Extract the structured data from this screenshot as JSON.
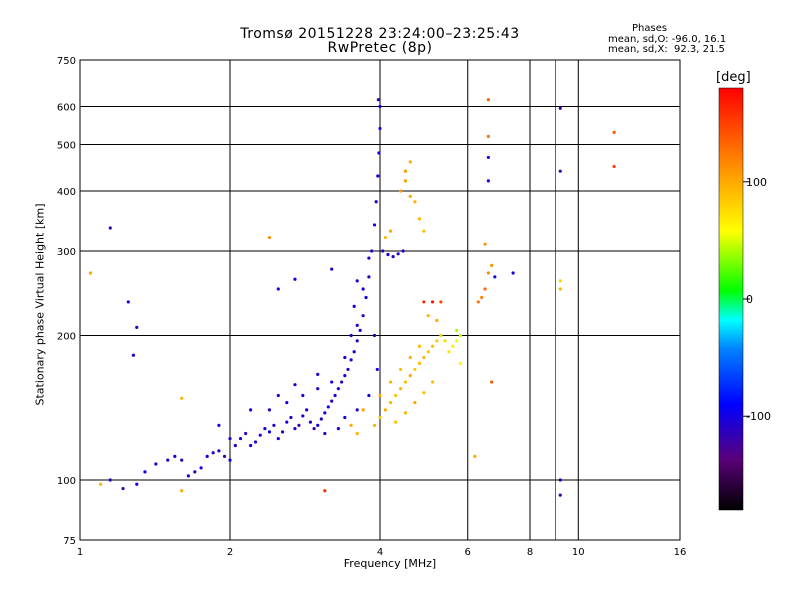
{
  "chart_data": {
    "type": "scatter",
    "title": "Tromsø 20151228 23:24:00–23:25:43",
    "subtitle": "RwPretec (8p)",
    "stats": {
      "heading": "Phases",
      "o_line": "mean, sd,O: -96.0, 16.1",
      "x_line": "mean, sd,X:  92.3, 21.5"
    },
    "xlabel": "Frequency [MHz]",
    "ylabel": "Stationary phase Virtual Height [km]",
    "xscale": "log",
    "yscale": "log",
    "xlim": [
      1,
      16
    ],
    "ylim": [
      75,
      750
    ],
    "xticks": [
      1,
      2,
      4,
      6,
      8,
      10,
      16
    ],
    "xtick_labels": [
      "1",
      "2",
      "4",
      "6",
      "8",
      "10",
      "16"
    ],
    "xgrid": [
      1,
      2,
      4,
      6,
      8,
      10,
      16
    ],
    "xgrid_minor": [
      9
    ],
    "yticks": [
      75,
      100,
      200,
      300,
      400,
      500,
      600,
      750
    ],
    "ytick_labels": [
      "75",
      "100",
      "200",
      "300",
      "400",
      "500",
      "600",
      "750"
    ],
    "grid": true,
    "colorbar": {
      "label": "[deg]",
      "range": [
        -180,
        180
      ],
      "ticks": [
        100,
        0,
        -100
      ],
      "tick_labels": [
        "100",
        "0",
        "-100"
      ]
    },
    "series": [
      {
        "mode": "O",
        "phase_mean": -96,
        "points": [
          [
            1.15,
            100,
            -110
          ],
          [
            1.22,
            96,
            -120
          ],
          [
            1.3,
            98,
            -100
          ],
          [
            1.35,
            104,
            -95
          ],
          [
            1.42,
            108,
            -105
          ],
          [
            1.5,
            110,
            -110
          ],
          [
            1.55,
            112,
            -100
          ],
          [
            1.6,
            110,
            -115
          ],
          [
            1.65,
            102,
            -105
          ],
          [
            1.7,
            104,
            -110
          ],
          [
            1.75,
            106,
            -100
          ],
          [
            1.8,
            112,
            -95
          ],
          [
            1.85,
            114,
            -110
          ],
          [
            1.9,
            115,
            -105
          ],
          [
            1.95,
            112,
            -120
          ],
          [
            2.0,
            110,
            -100
          ],
          [
            2.05,
            118,
            -110
          ],
          [
            2.1,
            122,
            -105
          ],
          [
            2.15,
            125,
            -115
          ],
          [
            2.2,
            118,
            -100
          ],
          [
            2.25,
            120,
            -105
          ],
          [
            2.3,
            124,
            -110
          ],
          [
            2.35,
            128,
            -100
          ],
          [
            2.4,
            126,
            -95
          ],
          [
            2.45,
            130,
            -110
          ],
          [
            2.5,
            122,
            -105
          ],
          [
            2.55,
            126,
            -115
          ],
          [
            2.6,
            132,
            -100
          ],
          [
            2.65,
            135,
            -110
          ],
          [
            2.7,
            128,
            -105
          ],
          [
            2.75,
            130,
            -120
          ],
          [
            2.8,
            136,
            -100
          ],
          [
            2.85,
            140,
            -110
          ],
          [
            2.9,
            132,
            -105
          ],
          [
            2.95,
            128,
            -115
          ],
          [
            3.0,
            130,
            -100
          ],
          [
            3.05,
            134,
            -110
          ],
          [
            3.1,
            138,
            -105
          ],
          [
            3.15,
            142,
            -95
          ],
          [
            3.2,
            146,
            -110
          ],
          [
            3.25,
            150,
            -100
          ],
          [
            3.3,
            155,
            -105
          ],
          [
            3.35,
            160,
            -115
          ],
          [
            3.4,
            165,
            -100
          ],
          [
            3.45,
            170,
            -110
          ],
          [
            3.5,
            178,
            -105
          ],
          [
            3.55,
            185,
            -100
          ],
          [
            3.6,
            195,
            -110
          ],
          [
            3.65,
            205,
            -105
          ],
          [
            3.7,
            220,
            -115
          ],
          [
            3.75,
            240,
            -100
          ],
          [
            3.8,
            265,
            -110
          ],
          [
            3.85,
            300,
            -105
          ],
          [
            3.9,
            340,
            -100
          ],
          [
            3.93,
            380,
            -110
          ],
          [
            3.96,
            430,
            -105
          ],
          [
            3.98,
            480,
            -100
          ],
          [
            4.0,
            540,
            -110
          ],
          [
            4.0,
            600,
            -105
          ],
          [
            3.97,
            620,
            -115
          ],
          [
            2.4,
            140,
            -110
          ],
          [
            2.6,
            145,
            -100
          ],
          [
            2.8,
            150,
            -105
          ],
          [
            3.0,
            155,
            -110
          ],
          [
            3.2,
            160,
            -100
          ],
          [
            3.4,
            180,
            -105
          ],
          [
            3.6,
            210,
            -110
          ],
          [
            3.7,
            250,
            -100
          ],
          [
            3.8,
            290,
            -105
          ],
          [
            4.05,
            300,
            -110
          ],
          [
            4.15,
            295,
            -100
          ],
          [
            4.25,
            292,
            -105
          ],
          [
            4.35,
            296,
            -110
          ],
          [
            4.45,
            300,
            -100
          ],
          [
            2.0,
            122,
            -110
          ],
          [
            1.9,
            130,
            -100
          ],
          [
            2.2,
            140,
            -105
          ],
          [
            2.5,
            150,
            -110
          ],
          [
            2.7,
            158,
            -100
          ],
          [
            3.0,
            166,
            -105
          ],
          [
            3.5,
            200,
            -110
          ],
          [
            3.55,
            230,
            -100
          ],
          [
            3.6,
            260,
            -105
          ],
          [
            3.9,
            200,
            -110
          ],
          [
            3.95,
            170,
            -100
          ],
          [
            3.8,
            150,
            -105
          ],
          [
            3.6,
            140,
            -110
          ],
          [
            3.4,
            135,
            -100
          ],
          [
            3.3,
            128,
            -105
          ],
          [
            3.1,
            125,
            -110
          ],
          [
            1.3,
            208,
            -110
          ],
          [
            1.25,
            235,
            -100
          ],
          [
            1.15,
            335,
            -115
          ],
          [
            1.28,
            182,
            -105
          ],
          [
            2.5,
            250,
            -110
          ],
          [
            2.7,
            262,
            -100
          ],
          [
            9.2,
            595,
            -120
          ],
          [
            9.2,
            440,
            -115
          ],
          [
            9.2,
            100,
            -110
          ],
          [
            9.2,
            93,
            -120
          ],
          [
            6.6,
            470,
            -105
          ],
          [
            6.6,
            420,
            -110
          ],
          [
            7.4,
            270,
            -100
          ],
          [
            6.8,
            265,
            -105
          ],
          [
            3.2,
            275,
            -110
          ]
        ]
      },
      {
        "mode": "X",
        "phase_mean": 92,
        "points": [
          [
            3.9,
            130,
            95
          ],
          [
            4.0,
            135,
            90
          ],
          [
            4.1,
            140,
            100
          ],
          [
            4.2,
            145,
            92
          ],
          [
            4.3,
            150,
            88
          ],
          [
            4.4,
            155,
            95
          ],
          [
            4.5,
            160,
            90
          ],
          [
            4.6,
            165,
            100
          ],
          [
            4.7,
            170,
            85
          ],
          [
            4.8,
            175,
            92
          ],
          [
            4.9,
            180,
            95
          ],
          [
            5.0,
            185,
            88
          ],
          [
            5.1,
            190,
            90
          ],
          [
            5.2,
            195,
            85
          ],
          [
            5.3,
            200,
            80
          ],
          [
            5.4,
            195,
            75
          ],
          [
            5.5,
            185,
            70
          ],
          [
            5.6,
            190,
            65
          ],
          [
            5.7,
            195,
            55
          ],
          [
            5.8,
            200,
            45
          ],
          [
            4.0,
            150,
            100
          ],
          [
            4.2,
            160,
            95
          ],
          [
            4.4,
            170,
            90
          ],
          [
            4.6,
            180,
            98
          ],
          [
            4.8,
            190,
            92
          ],
          [
            4.3,
            132,
            90
          ],
          [
            4.5,
            138,
            95
          ],
          [
            4.7,
            145,
            100
          ],
          [
            4.9,
            152,
            88
          ],
          [
            5.1,
            160,
            92
          ],
          [
            4.4,
            400,
            110
          ],
          [
            4.5,
            420,
            105
          ],
          [
            4.6,
            390,
            100
          ],
          [
            4.7,
            380,
            95
          ],
          [
            4.5,
            440,
            110
          ],
          [
            4.6,
            460,
            100
          ],
          [
            4.8,
            350,
            95
          ],
          [
            4.9,
            330,
            90
          ],
          [
            4.2,
            330,
            100
          ],
          [
            4.1,
            320,
            95
          ],
          [
            6.3,
            235,
            125
          ],
          [
            6.4,
            240,
            120
          ],
          [
            6.5,
            250,
            130
          ],
          [
            6.6,
            270,
            115
          ],
          [
            6.7,
            280,
            110
          ],
          [
            6.6,
            620,
            135
          ],
          [
            6.6,
            520,
            125
          ],
          [
            6.5,
            310,
            110
          ],
          [
            6.7,
            160,
            140
          ],
          [
            6.2,
            112,
            100
          ],
          [
            11.8,
            530,
            140
          ],
          [
            11.8,
            450,
            150
          ],
          [
            4.9,
            235,
            160
          ],
          [
            5.1,
            235,
            170
          ],
          [
            5.3,
            235,
            150
          ],
          [
            5.0,
            220,
            95
          ],
          [
            5.2,
            215,
            100
          ],
          [
            3.7,
            140,
            105
          ],
          [
            3.5,
            130,
            100
          ],
          [
            3.6,
            125,
            95
          ],
          [
            1.1,
            98,
            95
          ],
          [
            1.6,
            95,
            100
          ],
          [
            3.1,
            95,
            160
          ],
          [
            2.4,
            320,
            110
          ],
          [
            1.05,
            270,
            100
          ],
          [
            9.2,
            250,
            95
          ],
          [
            9.2,
            260,
            80
          ],
          [
            1.6,
            148,
            95
          ],
          [
            5.8,
            175,
            60
          ],
          [
            5.7,
            205,
            40
          ]
        ]
      }
    ]
  }
}
